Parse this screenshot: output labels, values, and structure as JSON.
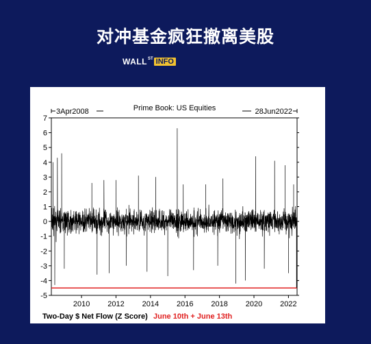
{
  "header": {
    "title": "对冲基金疯狂撤离美股",
    "logo": {
      "wall": "WALL",
      "superscript": "ST",
      "info": "INFO"
    }
  },
  "colors": {
    "background": "#0d1a5c",
    "logo_badge": "#f2c230",
    "series": "#000000",
    "highlight": "#e02020"
  },
  "chart_data": {
    "type": "line",
    "title": "Prime Book: US Equities",
    "start_label": "3Apr2008",
    "end_label": "28Jun2022",
    "x_range": [
      2008.25,
      2022.5
    ],
    "ylim": [
      -5,
      7
    ],
    "y_ticks": [
      -5,
      -4,
      -3,
      -2,
      -1,
      0,
      1,
      2,
      3,
      4,
      5,
      6,
      7
    ],
    "x_ticks": [
      2010,
      2012,
      2014,
      2016,
      2018,
      2020,
      2022
    ],
    "ylabel": "",
    "series": [
      {
        "name": "Two-Day $ Net Flow (Z Score)",
        "note": "noisy daily series around 0; key visible extremes listed",
        "spikes": [
          {
            "x": 2008.35,
            "y": 4.0
          },
          {
            "x": 2008.45,
            "y": -4.3
          },
          {
            "x": 2008.6,
            "y": 4.3
          },
          {
            "x": 2008.85,
            "y": 4.6
          },
          {
            "x": 2009.0,
            "y": -3.2
          },
          {
            "x": 2010.6,
            "y": 2.6
          },
          {
            "x": 2010.9,
            "y": -3.6
          },
          {
            "x": 2011.3,
            "y": 2.8
          },
          {
            "x": 2011.6,
            "y": -3.5
          },
          {
            "x": 2012.0,
            "y": 2.8
          },
          {
            "x": 2012.6,
            "y": -3.0
          },
          {
            "x": 2013.3,
            "y": 3.1
          },
          {
            "x": 2013.8,
            "y": -3.4
          },
          {
            "x": 2014.3,
            "y": 3.0
          },
          {
            "x": 2015.0,
            "y": -3.7
          },
          {
            "x": 2015.55,
            "y": 6.3
          },
          {
            "x": 2015.9,
            "y": 2.5
          },
          {
            "x": 2016.5,
            "y": -3.3
          },
          {
            "x": 2017.2,
            "y": 2.5
          },
          {
            "x": 2017.9,
            "y": -3.0
          },
          {
            "x": 2018.2,
            "y": 2.9
          },
          {
            "x": 2018.95,
            "y": -4.2
          },
          {
            "x": 2019.5,
            "y": -4.0
          },
          {
            "x": 2020.1,
            "y": 4.4
          },
          {
            "x": 2020.6,
            "y": -3.2
          },
          {
            "x": 2021.2,
            "y": 4.1
          },
          {
            "x": 2021.8,
            "y": 3.8
          },
          {
            "x": 2022.0,
            "y": -3.5
          },
          {
            "x": 2022.3,
            "y": 2.5
          },
          {
            "x": 2022.47,
            "y": -4.5
          }
        ]
      }
    ],
    "reference_line": {
      "y": -4.5
    },
    "footer_label": "Two-Day $ Net Flow (Z Score)",
    "highlight_label": "June 10th + June 13th"
  }
}
